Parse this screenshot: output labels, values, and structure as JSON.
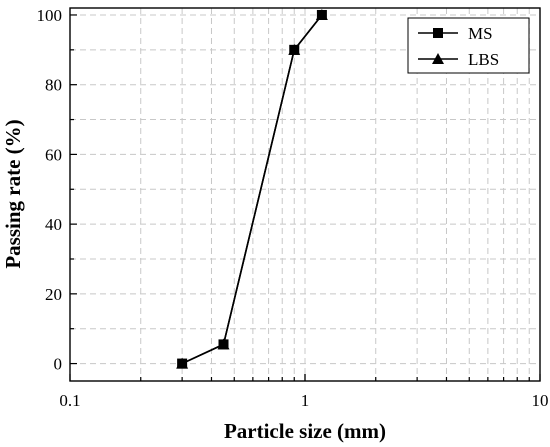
{
  "chart_data": {
    "type": "line",
    "xlabel": "Particle size (mm)",
    "ylabel": "Passing rate (%)",
    "xscale": "log",
    "xlim": [
      0.1,
      10
    ],
    "ylim": [
      -5,
      102
    ],
    "grid": true,
    "legend_position": "top-right",
    "x_ticks": [
      {
        "value": 0.1,
        "label": "0.1"
      },
      {
        "value": 1,
        "label": "1"
      },
      {
        "value": 10,
        "label": "10"
      }
    ],
    "y_ticks": [
      {
        "value": 0,
        "label": "0"
      },
      {
        "value": 20,
        "label": "20"
      },
      {
        "value": 40,
        "label": "40"
      },
      {
        "value": 60,
        "label": "60"
      },
      {
        "value": 80,
        "label": "80"
      },
      {
        "value": 100,
        "label": "100"
      }
    ],
    "series": [
      {
        "name": "MS",
        "marker": "square",
        "x": [
          0.3,
          0.45,
          0.9,
          1.18
        ],
        "y": [
          0,
          5.5,
          90,
          100
        ]
      },
      {
        "name": "LBS",
        "marker": "triangle",
        "x": [
          0.3,
          0.45,
          0.9,
          1.18
        ],
        "y": [
          0,
          5.5,
          90,
          100
        ]
      }
    ]
  }
}
